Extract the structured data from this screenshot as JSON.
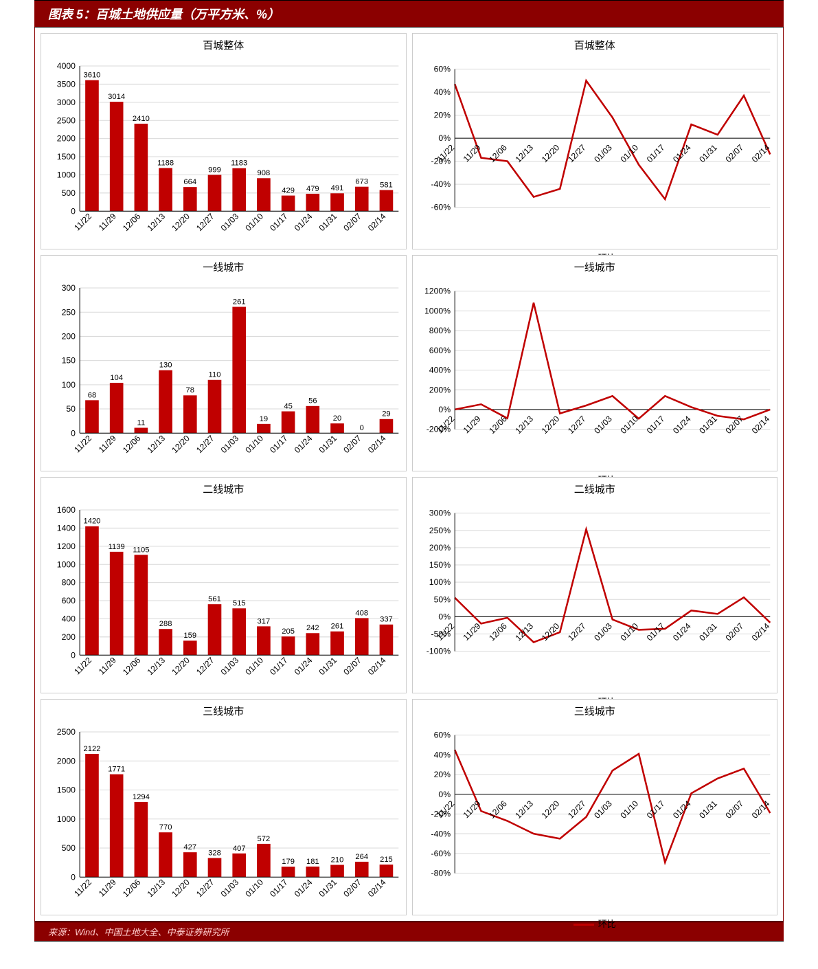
{
  "header_title": "图表 5：百城土地供应量（万平方米、%）",
  "footer_text": "来源：Wind、中国土地大全、中泰证券研究所",
  "colors": {
    "bar": "#c00000",
    "line": "#c00000",
    "axis": "#000000",
    "grid": "#d9d9d9",
    "panel_border": "#cccccc",
    "header_bg": "#8b0000",
    "text": "#000000"
  },
  "categories": [
    "11/22",
    "11/29",
    "12/06",
    "12/13",
    "12/20",
    "12/27",
    "01/03",
    "01/10",
    "01/17",
    "01/24",
    "01/31",
    "02/07",
    "02/14"
  ],
  "legend_label": "环比",
  "rows": [
    {
      "title": "百城整体",
      "bar": {
        "values": [
          3610,
          3014,
          2410,
          1188,
          664,
          999,
          1183,
          908,
          429,
          479,
          491,
          673,
          581
        ],
        "ylim": [
          0,
          4000
        ],
        "ytick_step": 500,
        "title_fontsize": 15,
        "label_fontsize": 12
      },
      "line": {
        "values_pct": [
          47,
          -17,
          -20,
          -51,
          -44,
          50,
          18,
          -23,
          -53,
          12,
          3,
          37,
          -14
        ],
        "ylim": [
          -60,
          60
        ],
        "ytick_step": 20
      }
    },
    {
      "title": "一线城市",
      "bar": {
        "values": [
          68,
          104,
          11,
          130,
          78,
          110,
          261,
          19,
          45,
          56,
          20,
          0,
          29
        ],
        "ylim": [
          0,
          300
        ],
        "ytick_step": 50
      },
      "line": {
        "values_pct": [
          0,
          53,
          -89,
          1082,
          -40,
          41,
          137,
          -93,
          137,
          24,
          -64,
          -100,
          0
        ],
        "ylim": [
          -200,
          1200
        ],
        "ytick_step": 200
      }
    },
    {
      "title": "二线城市",
      "bar": {
        "values": [
          1420,
          1139,
          1105,
          288,
          159,
          561,
          515,
          317,
          205,
          242,
          261,
          408,
          337
        ],
        "ylim": [
          0,
          1600
        ],
        "ytick_step": 200
      },
      "line": {
        "values_pct": [
          55,
          -20,
          -3,
          -74,
          -45,
          253,
          -8,
          -38,
          -35,
          18,
          8,
          56,
          -17
        ],
        "ylim": [
          -100,
          300
        ],
        "ytick_step": 50
      }
    },
    {
      "title": "三线城市",
      "bar": {
        "values": [
          2122,
          1771,
          1294,
          770,
          427,
          328,
          407,
          572,
          179,
          181,
          210,
          264,
          215
        ],
        "ylim": [
          0,
          2500
        ],
        "ytick_step": 500
      },
      "line": {
        "values_pct": [
          45,
          -17,
          -27,
          -40,
          -45,
          -23,
          24,
          41,
          -69,
          1,
          16,
          26,
          -19
        ],
        "ylim": [
          -80,
          60
        ],
        "ytick_step": 20
      }
    }
  ]
}
